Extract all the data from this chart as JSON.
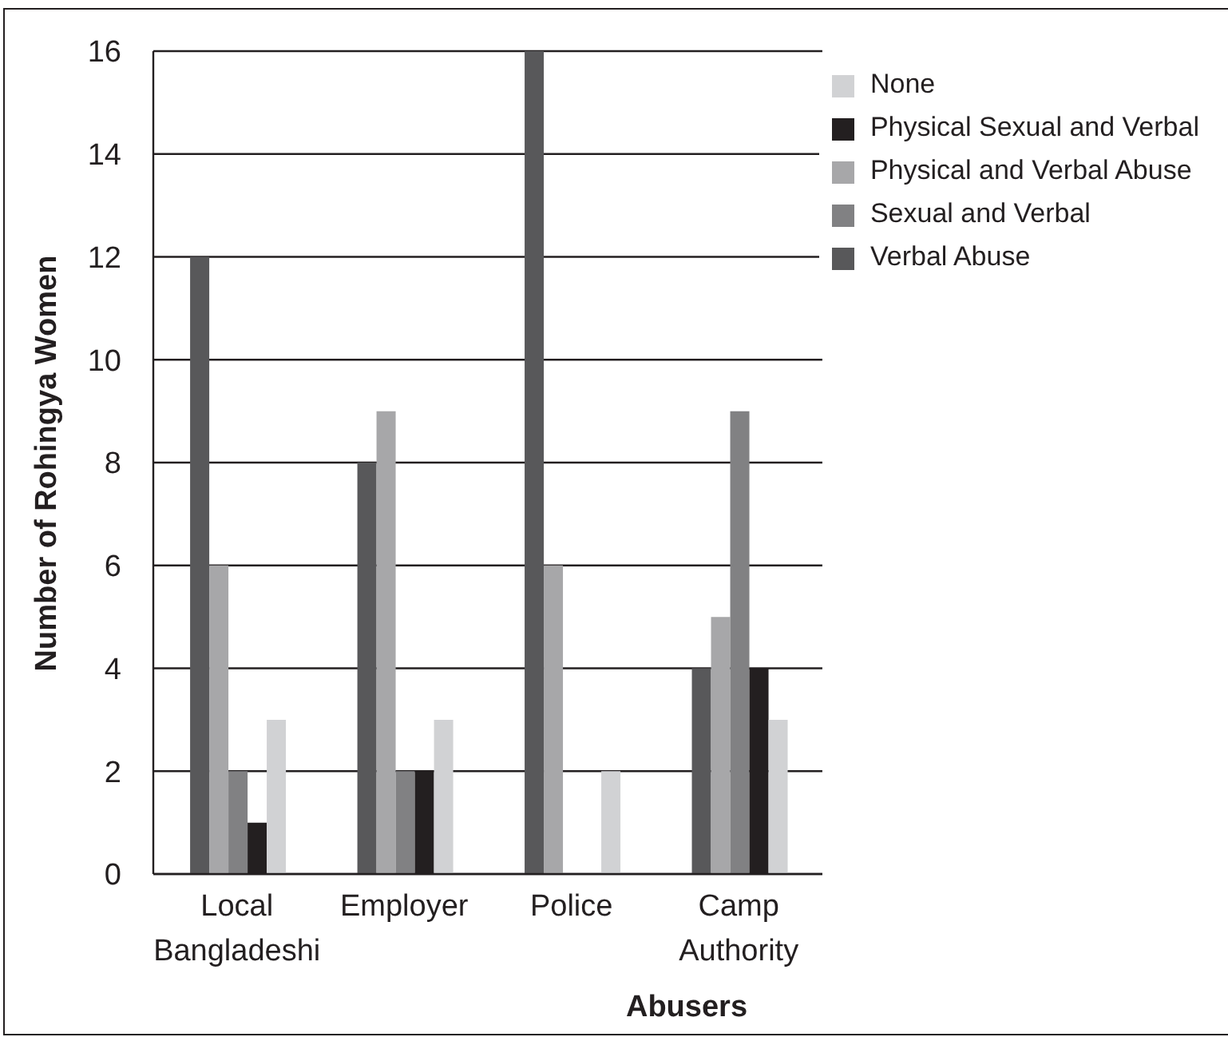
{
  "chart_data": {
    "type": "bar",
    "xlabel": "Abusers",
    "ylabel": "Number of Rohingya Women",
    "categories": [
      "Local Bangladeshi",
      "Employer",
      "Police",
      "Camp Authority"
    ],
    "series": [
      {
        "name": "Verbal Abuse",
        "color": "#58585a",
        "values": [
          12,
          8,
          16,
          4
        ]
      },
      {
        "name": "Physical and Verbal Abuse",
        "color": "#a7a7a9",
        "values": [
          6,
          9,
          6,
          5
        ]
      },
      {
        "name": "Sexual and Verbal",
        "color": "#818183",
        "values": [
          2,
          2,
          0,
          9
        ]
      },
      {
        "name": "Physical Sexual and Verbal",
        "color": "#231f20",
        "values": [
          1,
          2,
          0,
          4
        ]
      },
      {
        "name": "None",
        "color": "#d1d2d4",
        "values": [
          3,
          3,
          2,
          3
        ]
      }
    ],
    "ylim": [
      0,
      16
    ],
    "yticks": [
      0,
      2,
      4,
      6,
      8,
      10,
      12,
      14,
      16
    ],
    "grid": "y",
    "legend": "top right"
  }
}
